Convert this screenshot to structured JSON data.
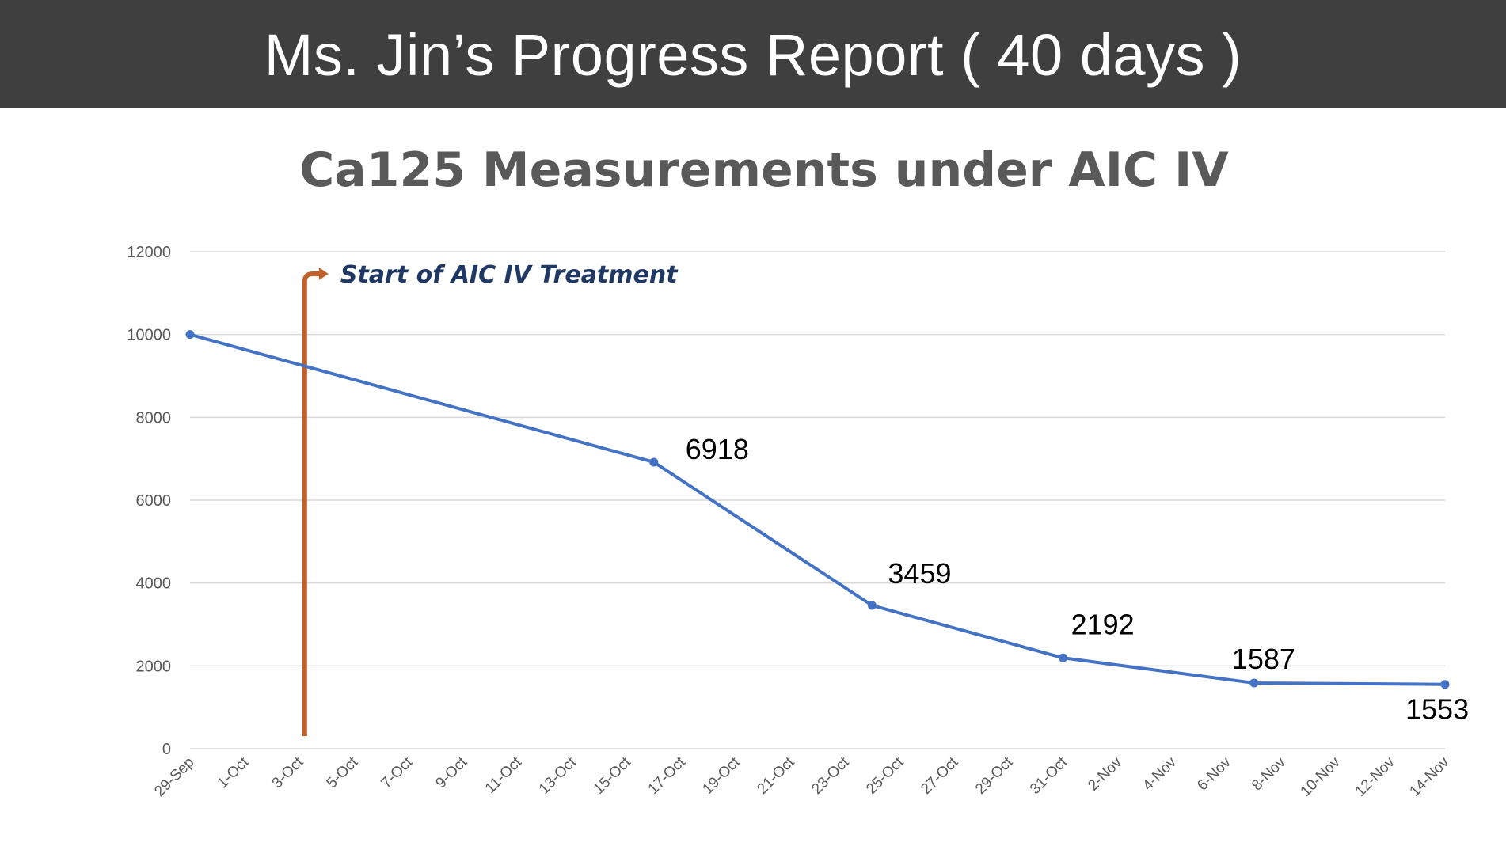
{
  "header": {
    "title": "Ms. Jin’s Progress Report ( 40 days )"
  },
  "chart_data": {
    "type": "line",
    "title": "Ca125 Measurements under AIC IV",
    "xlabel": "",
    "ylabel": "",
    "x_axis": {
      "type": "date",
      "start": "29-Sep",
      "end": "14-Nov",
      "tick_labels": [
        "29-Sep",
        "1-Oct",
        "3-Oct",
        "5-Oct",
        "7-Oct",
        "9-Oct",
        "11-Oct",
        "13-Oct",
        "15-Oct",
        "17-Oct",
        "19-Oct",
        "21-Oct",
        "23-Oct",
        "25-Oct",
        "27-Oct",
        "29-Oct",
        "31-Oct",
        "2-Nov",
        "4-Nov",
        "6-Nov",
        "8-Nov",
        "10-Nov",
        "12-Nov",
        "14-Nov"
      ]
    },
    "y_axis": {
      "ylim": [
        0,
        12000
      ],
      "ticks": [
        0,
        2000,
        4000,
        6000,
        8000,
        10000,
        12000
      ]
    },
    "grid": true,
    "series": [
      {
        "color": "#4472c4",
        "points": [
          {
            "x": "29-Sep",
            "y": 10000,
            "label": ""
          },
          {
            "x": "16-Oct",
            "y": 6918,
            "label": "6918"
          },
          {
            "x": "24-Oct",
            "y": 3459,
            "label": "3459"
          },
          {
            "x": "31-Oct",
            "y": 2192,
            "label": "2192"
          },
          {
            "x": "7-Nov",
            "y": 1587,
            "label": "1587"
          },
          {
            "x": "14-Nov",
            "y": 1553,
            "label": "1553"
          }
        ]
      }
    ],
    "annotations": [
      {
        "text": "Start of AIC IV Treatment",
        "x": "3-Oct",
        "color": "#c0612b"
      }
    ]
  }
}
